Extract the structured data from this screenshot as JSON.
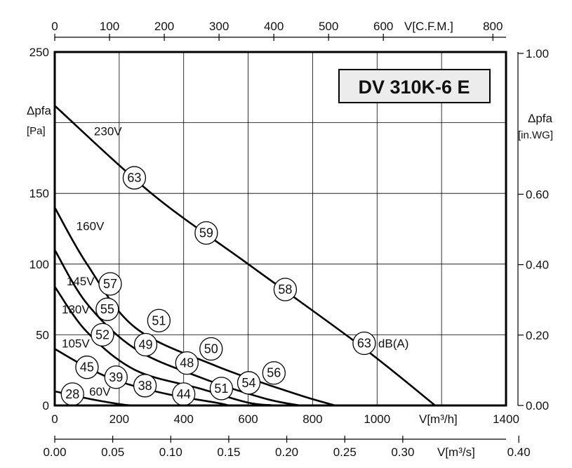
{
  "chart_data": {
    "type": "line",
    "title": "DV 310K-6 E",
    "xlabel": "V[m³/h]",
    "ylabel": "Δpfa [Pa]",
    "xlim": [
      0,
      1400
    ],
    "ylim": [
      0,
      250
    ],
    "x_ticks": [
      0,
      200,
      400,
      600,
      800,
      1000,
      1400
    ],
    "y_ticks": [
      0,
      50,
      100,
      150,
      250
    ],
    "grid": true,
    "secondary_axes": {
      "top": {
        "label": "V[C.F.M.]",
        "ticks": [
          0,
          100,
          200,
          300,
          400,
          500,
          600,
          800
        ],
        "max": 824
      },
      "bottom2": {
        "label": "V[m³/s]",
        "ticks": [
          "0.00",
          "0.05",
          "0.10",
          "0.15",
          "0.20",
          "0.25",
          "0.30",
          "0.40"
        ],
        "max": 0.389
      },
      "right": {
        "label_line1": "Δpfa",
        "label_line2": "[in.WG]",
        "ticks": [
          "0.00",
          "0.20",
          "0.40",
          "0.60",
          "1.00"
        ],
        "max": 1.004
      }
    },
    "series": [
      {
        "name": "230V",
        "points": [
          [
            0,
            212
          ],
          [
            300,
            150
          ],
          [
            600,
            100
          ],
          [
            950,
            42
          ],
          [
            1180,
            0
          ]
        ]
      },
      {
        "name": "160V",
        "points": [
          [
            0,
            140
          ],
          [
            100,
            100
          ],
          [
            250,
            55
          ],
          [
            500,
            28
          ],
          [
            750,
            8
          ],
          [
            870,
            0
          ]
        ]
      },
      {
        "name": "145V",
        "points": [
          [
            0,
            110
          ],
          [
            100,
            72
          ],
          [
            250,
            40
          ],
          [
            450,
            20
          ],
          [
            650,
            5
          ],
          [
            760,
            0
          ]
        ]
      },
      {
        "name": "130V",
        "points": [
          [
            0,
            84
          ],
          [
            100,
            52
          ],
          [
            250,
            25
          ],
          [
            450,
            12
          ],
          [
            600,
            2
          ],
          [
            690,
            0
          ]
        ]
      },
      {
        "name": "105V",
        "points": [
          [
            0,
            40
          ],
          [
            100,
            27
          ],
          [
            200,
            17
          ],
          [
            350,
            8
          ],
          [
            500,
            2
          ],
          [
            540,
            0
          ]
        ]
      },
      {
        "name": "60V",
        "points": [
          [
            0,
            10
          ],
          [
            100,
            5
          ],
          [
            200,
            1
          ],
          [
            240,
            0
          ]
        ]
      }
    ],
    "curve_labels": [
      {
        "text": "230V",
        "x": 165,
        "y": 194
      },
      {
        "text": "160V",
        "x": 110,
        "y": 127
      },
      {
        "text": "145V",
        "x": 80,
        "y": 88
      },
      {
        "text": "130V",
        "x": 65,
        "y": 68
      },
      {
        "text": "105V",
        "x": 65,
        "y": 44
      },
      {
        "text": "60V",
        "x": 140,
        "y": 10
      }
    ],
    "annotations": [
      {
        "text": "63",
        "x": 247,
        "y": 161
      },
      {
        "text": "59",
        "x": 470,
        "y": 122
      },
      {
        "text": "58",
        "x": 715,
        "y": 82
      },
      {
        "text": "63",
        "x": 960,
        "y": 44
      },
      {
        "text": "57",
        "x": 172,
        "y": 86
      },
      {
        "text": "51",
        "x": 323,
        "y": 60
      },
      {
        "text": "55",
        "x": 163,
        "y": 68
      },
      {
        "text": "52",
        "x": 148,
        "y": 50
      },
      {
        "text": "49",
        "x": 282,
        "y": 43
      },
      {
        "text": "50",
        "x": 485,
        "y": 40
      },
      {
        "text": "45",
        "x": 100,
        "y": 27
      },
      {
        "text": "39",
        "x": 190,
        "y": 20
      },
      {
        "text": "48",
        "x": 410,
        "y": 30
      },
      {
        "text": "56",
        "x": 680,
        "y": 23
      },
      {
        "text": "38",
        "x": 280,
        "y": 14
      },
      {
        "text": "51",
        "x": 517,
        "y": 12
      },
      {
        "text": "54",
        "x": 602,
        "y": 16
      },
      {
        "text": "28",
        "x": 55,
        "y": 8
      },
      {
        "text": "44",
        "x": 400,
        "y": 8
      }
    ],
    "annotation_suffix": "dB(A)"
  }
}
